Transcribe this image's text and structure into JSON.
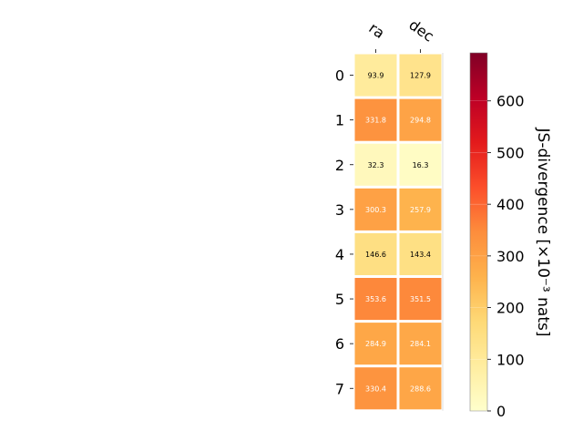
{
  "chart_data": {
    "type": "heatmap",
    "columns": [
      "ra",
      "dec"
    ],
    "rows": [
      "0",
      "1",
      "2",
      "3",
      "4",
      "5",
      "6",
      "7"
    ],
    "values": [
      [
        93.9,
        127.9
      ],
      [
        331.8,
        294.8
      ],
      [
        32.3,
        16.3
      ],
      [
        300.3,
        257.9
      ],
      [
        146.6,
        143.4
      ],
      [
        353.6,
        351.5
      ],
      [
        284.9,
        284.1
      ],
      [
        330.4,
        288.6
      ]
    ],
    "cell_labels": [
      [
        "93.9",
        "127.9"
      ],
      [
        "331.8",
        "294.8"
      ],
      [
        "32.3",
        "16.3"
      ],
      [
        "300.3",
        "257.9"
      ],
      [
        "146.6",
        "143.4"
      ],
      [
        "353.6",
        "351.5"
      ],
      [
        "284.9",
        "284.1"
      ],
      [
        "330.4",
        "288.6"
      ]
    ],
    "colorbar": {
      "label": "JS-divergence [×10⁻³ nats]",
      "range": [
        0,
        693
      ],
      "ticks": [
        0,
        100,
        200,
        300,
        400,
        500,
        600
      ],
      "colormap": "YlOrRd",
      "stops": [
        "#ffffcc",
        "#ffeda0",
        "#fed976",
        "#feb24c",
        "#fd8d3c",
        "#fc4e2a",
        "#e31a1c",
        "#bd0026",
        "#800026"
      ]
    },
    "grid": false
  }
}
